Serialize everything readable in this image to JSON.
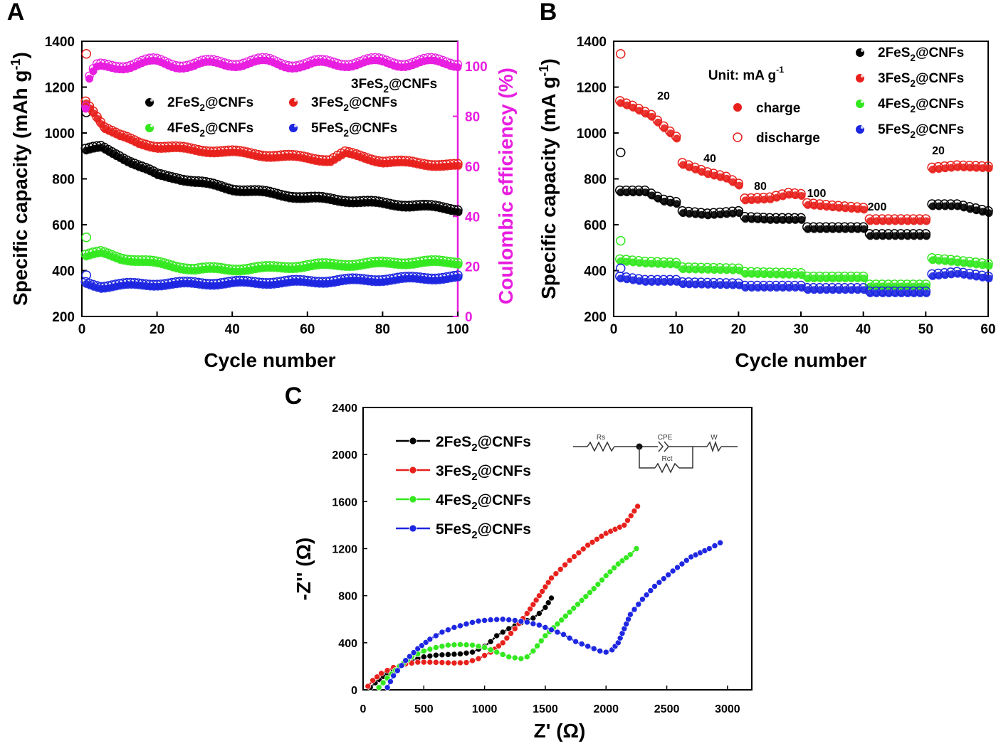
{
  "colors": {
    "black": "#000000",
    "red": "#e8201c",
    "green": "#33e81f",
    "blue": "#1d26e0",
    "magenta": "#e81ee0"
  },
  "chart_data": [
    {
      "panel": "A",
      "type": "scatter",
      "xlabel": "Cycle number",
      "ylabel": "Specific capacity (mAh g-1)",
      "ylabel_right": "Coulombic efficiency (%)",
      "xlim": [
        0,
        100
      ],
      "ylim": [
        200,
        1400
      ],
      "ylim_right": [
        0,
        110
      ],
      "xticks": [
        "0",
        "20",
        "40",
        "60",
        "80",
        "100"
      ],
      "yticks": [
        "200",
        "400",
        "600",
        "800",
        "1000",
        "1200",
        "1400"
      ],
      "yticks_right": [
        "0",
        "20",
        "40",
        "60",
        "80",
        "100"
      ],
      "ce_label": "3FeS2@CNFs",
      "legend": [
        "2FeS2@CNFs",
        "3FeS2@CNFs",
        "4FeS2@CNFs",
        "5FeS2@CNFs"
      ],
      "legend_position": "center",
      "series": [
        {
          "name": "2FeS2@CNFs",
          "color": "black",
          "x": [
            1,
            5,
            10,
            15,
            20,
            25,
            30,
            40,
            50,
            60,
            70,
            80,
            90,
            100
          ],
          "y": [
            930,
            940,
            905,
            860,
            820,
            810,
            790,
            760,
            740,
            720,
            710,
            695,
            685,
            670
          ],
          "first_discharge": 1090
        },
        {
          "name": "3FeS2@CNFs",
          "color": "red",
          "x": [
            1,
            3,
            6,
            10,
            15,
            20,
            30,
            40,
            50,
            60,
            66,
            70,
            80,
            90,
            100
          ],
          "y": [
            1140,
            1100,
            1030,
            990,
            960,
            945,
            930,
            920,
            905,
            895,
            885,
            915,
            880,
            870,
            860
          ],
          "first_discharge": 1345
        },
        {
          "name": "4FeS2@CNFs",
          "color": "green",
          "x": [
            1,
            5,
            10,
            20,
            30,
            40,
            50,
            60,
            70,
            80,
            90,
            100
          ],
          "y": [
            470,
            480,
            460,
            435,
            410,
            410,
            415,
            425,
            430,
            435,
            440,
            440
          ],
          "first_discharge": 545
        },
        {
          "name": "5FeS2@CNFs",
          "color": "blue",
          "x": [
            1,
            5,
            10,
            20,
            40,
            60,
            80,
            100
          ],
          "y": [
            350,
            335,
            340,
            345,
            350,
            355,
            365,
            375
          ],
          "first_discharge": 380
        },
        {
          "name": "3FeS2@CNFs",
          "color": "magenta",
          "axis": "right",
          "x": [
            1,
            2,
            3,
            5,
            10,
            20,
            30,
            40,
            50,
            60,
            70,
            80,
            90,
            100
          ],
          "y": [
            83,
            95,
            98,
            99,
            100,
            101,
            100,
            101,
            101,
            100,
            101,
            101,
            101,
            101
          ]
        }
      ]
    },
    {
      "panel": "B",
      "type": "scatter",
      "xlabel": "Cycle number",
      "ylabel": "Specific capacity (mA g-1)",
      "xlim": [
        0,
        60
      ],
      "ylim": [
        200,
        1400
      ],
      "xticks": [
        "0",
        "10",
        "20",
        "30",
        "40",
        "50",
        "60"
      ],
      "yticks": [
        "200",
        "400",
        "600",
        "800",
        "1000",
        "1200",
        "1400"
      ],
      "unit_label": "Unit: mA g-1",
      "rate_labels": [
        "20",
        "40",
        "80",
        "100",
        "200",
        "20"
      ],
      "marker_legend": [
        "charge",
        "discharge"
      ],
      "legend": [
        "2FeS2@CNFs",
        "3FeS2@CNFs",
        "4FeS2@CNFs",
        "5FeS2@CNFs"
      ],
      "legend_position": "top-right",
      "series": [
        {
          "name": "2FeS2@CNFs",
          "color": "black",
          "x": [
            1,
            5,
            8,
            10,
            11,
            15,
            20,
            21,
            25,
            30,
            31,
            35,
            40,
            41,
            45,
            50,
            51,
            55,
            60
          ],
          "y": [
            750,
            750,
            710,
            700,
            660,
            650,
            660,
            635,
            630,
            630,
            590,
            590,
            590,
            560,
            560,
            560,
            690,
            690,
            660
          ],
          "first_discharge": 915
        },
        {
          "name": "3FeS2@CNFs",
          "color": "red",
          "x": [
            1,
            3,
            6,
            8,
            10,
            11,
            15,
            18,
            20,
            21,
            25,
            28,
            30,
            31,
            35,
            40,
            41,
            45,
            50,
            51,
            55,
            60
          ],
          "y": [
            1140,
            1120,
            1080,
            1030,
            985,
            870,
            830,
            810,
            780,
            715,
            720,
            740,
            735,
            695,
            685,
            675,
            625,
            625,
            625,
            850,
            860,
            855
          ],
          "first_discharge": 1345
        },
        {
          "name": "4FeS2@CNFs",
          "color": "green",
          "x": [
            1,
            5,
            10,
            11,
            20,
            21,
            30,
            31,
            40,
            41,
            50,
            51,
            55,
            60
          ],
          "y": [
            450,
            440,
            435,
            415,
            410,
            395,
            390,
            375,
            375,
            340,
            340,
            455,
            445,
            430
          ],
          "first_discharge": 530
        },
        {
          "name": "5FeS2@CNFs",
          "color": "blue",
          "x": [
            1,
            5,
            10,
            11,
            20,
            21,
            30,
            31,
            40,
            41,
            50,
            51,
            55,
            60
          ],
          "y": [
            375,
            360,
            360,
            350,
            345,
            335,
            335,
            325,
            325,
            310,
            310,
            385,
            395,
            375
          ],
          "first_discharge": 410
        }
      ]
    },
    {
      "panel": "C",
      "type": "line",
      "xlabel": "Z' (Ω)",
      "ylabel": "-Z'' (Ω)",
      "xlim": [
        0,
        3200
      ],
      "ylim": [
        0,
        2400
      ],
      "xticks": [
        "0",
        "500",
        "1000",
        "1500",
        "2000",
        "2500",
        "3000"
      ],
      "yticks": [
        "0",
        "400",
        "800",
        "1200",
        "1600",
        "2000",
        "2400"
      ],
      "circuit_labels": [
        "Rs",
        "CPE",
        "W",
        "Rct"
      ],
      "legend": [
        "2FeS2@CNFs",
        "3FeS2@CNFs",
        "4FeS2@CNFs",
        "5FeS2@CNFs"
      ],
      "legend_position": "top-left",
      "series": [
        {
          "name": "2FeS2@CNFs",
          "color": "black",
          "x": [
            60,
            100,
            200,
            300,
            400,
            500,
            600,
            700,
            800,
            900,
            1000,
            1050,
            1100,
            1200,
            1300,
            1400,
            1450,
            1500,
            1550
          ],
          "y": [
            20,
            60,
            140,
            200,
            250,
            280,
            295,
            300,
            305,
            320,
            370,
            410,
            460,
            520,
            570,
            610,
            650,
            700,
            780
          ]
        },
        {
          "name": "3FeS2@CNFs",
          "color": "red",
          "x": [
            40,
            80,
            150,
            250,
            350,
            450,
            550,
            650,
            750,
            850,
            950,
            1050,
            1150,
            1250,
            1350,
            1450,
            1550,
            1700,
            1850,
            2000,
            2150,
            2260
          ],
          "y": [
            30,
            80,
            140,
            190,
            220,
            235,
            235,
            232,
            228,
            232,
            265,
            320,
            400,
            520,
            650,
            800,
            950,
            1100,
            1230,
            1330,
            1400,
            1560
          ]
        },
        {
          "name": "4FeS2@CNFs",
          "color": "green",
          "x": [
            130,
            200,
            300,
            400,
            500,
            600,
            700,
            800,
            900,
            1000,
            1100,
            1200,
            1300,
            1350,
            1400,
            1500,
            1600,
            1700,
            1800,
            1900,
            2000,
            2100,
            2200,
            2250
          ],
          "y": [
            20,
            100,
            200,
            280,
            330,
            360,
            380,
            385,
            380,
            360,
            320,
            280,
            265,
            280,
            330,
            460,
            560,
            660,
            760,
            860,
            970,
            1070,
            1150,
            1200
          ]
        },
        {
          "name": "5FeS2@CNFs",
          "color": "blue",
          "x": [
            200,
            250,
            350,
            450,
            550,
            650,
            750,
            850,
            950,
            1050,
            1150,
            1250,
            1350,
            1450,
            1550,
            1650,
            1750,
            1850,
            1950,
            2000,
            2050,
            2100,
            2150,
            2200,
            2300,
            2400,
            2550,
            2700,
            2850,
            2940
          ],
          "y": [
            20,
            120,
            250,
            350,
            430,
            490,
            530,
            560,
            585,
            595,
            600,
            590,
            575,
            550,
            510,
            470,
            410,
            370,
            330,
            320,
            340,
            400,
            520,
            640,
            770,
            880,
            1010,
            1130,
            1200,
            1250
          ]
        }
      ]
    }
  ]
}
